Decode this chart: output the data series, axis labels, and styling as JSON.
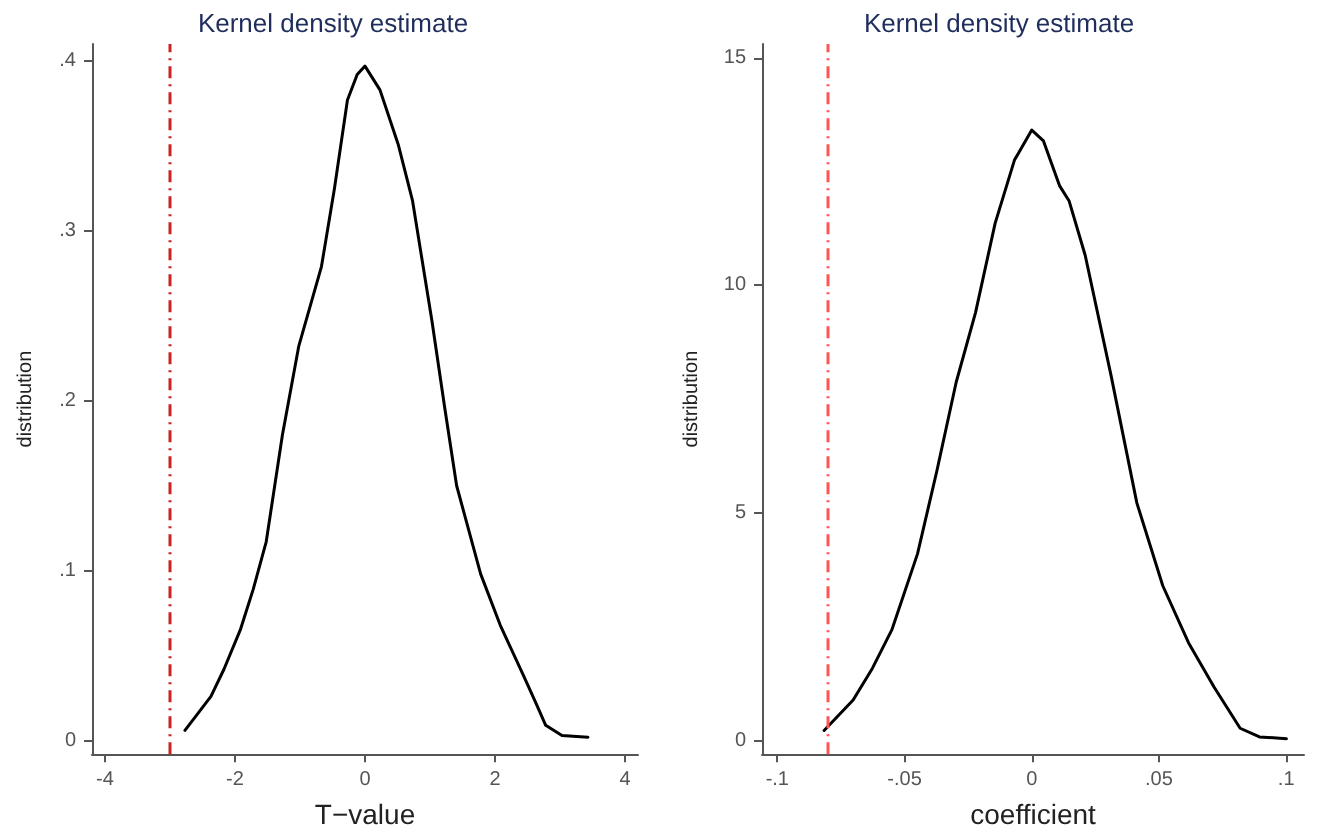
{
  "chart_data": [
    {
      "type": "line",
      "title": "Kernel density estimate",
      "xlabel": "T−value",
      "ylabel": "distribution",
      "line_style": "solid",
      "grid": false,
      "xlim": [
        -4.2,
        4.2
      ],
      "xticks": [
        -4,
        -2,
        0,
        2,
        4
      ],
      "ylim": [
        -0.008,
        0.41
      ],
      "yticks": [
        0,
        {
          "value": 0.1,
          "label": ".1"
        },
        {
          "value": 0.2,
          "label": ".2"
        },
        {
          "value": 0.3,
          "label": ".3"
        },
        {
          "value": 0.4,
          "label": ".4"
        }
      ],
      "series": [
        {
          "color": "#000000",
          "x": [
            -2.77,
            -2.37,
            -2.17,
            -1.92,
            -1.72,
            -1.52,
            -1.27,
            -1.02,
            -0.67,
            -0.47,
            -0.27,
            -0.12,
            0,
            0.23,
            0.51,
            0.73,
            1.03,
            1.23,
            1.41,
            1.78,
            2.08,
            2.43,
            2.63,
            2.78,
            3.03,
            3.43
          ],
          "values": [
            0.006,
            0.026,
            0.042,
            0.065,
            0.089,
            0.117,
            0.18,
            0.232,
            0.279,
            0.325,
            0.377,
            0.392,
            0.397,
            0.383,
            0.351,
            0.318,
            0.247,
            0.195,
            0.15,
            0.098,
            0.068,
            0.039,
            0.022,
            0.009,
            0.003,
            0.002
          ]
        }
      ],
      "ref_lines": [
        {
          "axis": "x",
          "value": -3,
          "color": "#cc2222",
          "line_style": "dashed"
        }
      ]
    },
    {
      "type": "line",
      "title": "Kernel density estimate",
      "xlabel": "coefficient",
      "ylabel": "distribution",
      "line_style": "solid",
      "grid": false,
      "xlim": [
        -0.106,
        0.107
      ],
      "xticks": [
        {
          "value": -0.1,
          "label": "-.1"
        },
        {
          "value": -0.05,
          "label": "-.05"
        },
        0,
        {
          "value": 0.05,
          "label": ".05"
        },
        {
          "value": 0.1,
          "label": ".1"
        }
      ],
      "ylim": [
        -0.3,
        15.3
      ],
      "yticks": [
        0,
        5,
        10,
        15
      ],
      "series": [
        {
          "color": "#000000",
          "x": [
            -0.0816,
            -0.0702,
            -0.0626,
            -0.055,
            -0.0449,
            -0.0373,
            -0.0297,
            -0.0221,
            -0.0144,
            -0.0068,
            0,
            0.0046,
            0.0109,
            0.0147,
            0.021,
            0.0312,
            0.0413,
            0.0515,
            0.0616,
            0.0717,
            0.0819,
            0.0895,
            0.1001
          ],
          "values": [
            0.22,
            0.89,
            1.59,
            2.43,
            4.1,
            5.92,
            7.87,
            9.4,
            11.36,
            12.75,
            13.41,
            13.17,
            12.19,
            11.85,
            10.66,
            8.01,
            5.22,
            3.4,
            2.15,
            1.17,
            0.27,
            0.08,
            0.04
          ]
        }
      ],
      "ref_lines": [
        {
          "axis": "x",
          "value": -0.081,
          "color": "#ff5555",
          "line_style": "dashed"
        }
      ]
    }
  ]
}
